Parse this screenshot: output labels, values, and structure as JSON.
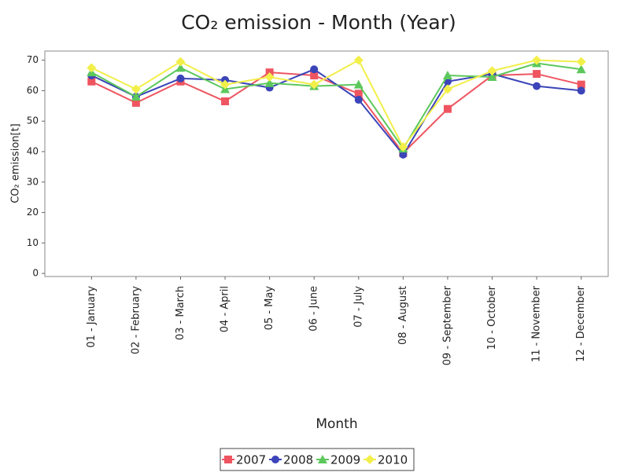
{
  "chart_data": {
    "type": "line",
    "title": "CO₂ emission - Month (Year)",
    "x_label": "Month",
    "y_label": "CO₂ emission[t]",
    "categories": [
      "01 - January",
      "02 - February",
      "03 - March",
      "04 - April",
      "05 - May",
      "06 - June",
      "07 - July",
      "08 - August",
      "09 - September",
      "10 - October",
      "11 - November",
      "12 - December"
    ],
    "series": [
      {
        "name": "2007",
        "color": "#ee5560",
        "marker": "square",
        "values": [
          63,
          56,
          63,
          56.5,
          66,
          65,
          59,
          39.5,
          54,
          65,
          65.5,
          62
        ]
      },
      {
        "name": "2008",
        "color": "#3b44b8",
        "marker": "circle",
        "values": [
          65,
          58,
          64,
          63.5,
          61,
          67,
          57,
          39,
          63,
          65.5,
          61.5,
          60
        ]
      },
      {
        "name": "2009",
        "color": "#5cc85c",
        "marker": "triangle",
        "values": [
          66,
          58,
          67.5,
          60.5,
          62.5,
          61.5,
          62,
          41,
          65,
          64.5,
          69,
          67
        ]
      },
      {
        "name": "2010",
        "color": "#f2ef4a",
        "marker": "diamond",
        "values": [
          67.5,
          60.5,
          69.5,
          62,
          64.5,
          62,
          70,
          41.5,
          60.5,
          66.5,
          70,
          69.5
        ]
      }
    ],
    "ylim": [
      -1,
      73
    ],
    "yticks": [
      0,
      10,
      20,
      30,
      40,
      50,
      60,
      70
    ],
    "grid": false,
    "legend": "bottom"
  }
}
